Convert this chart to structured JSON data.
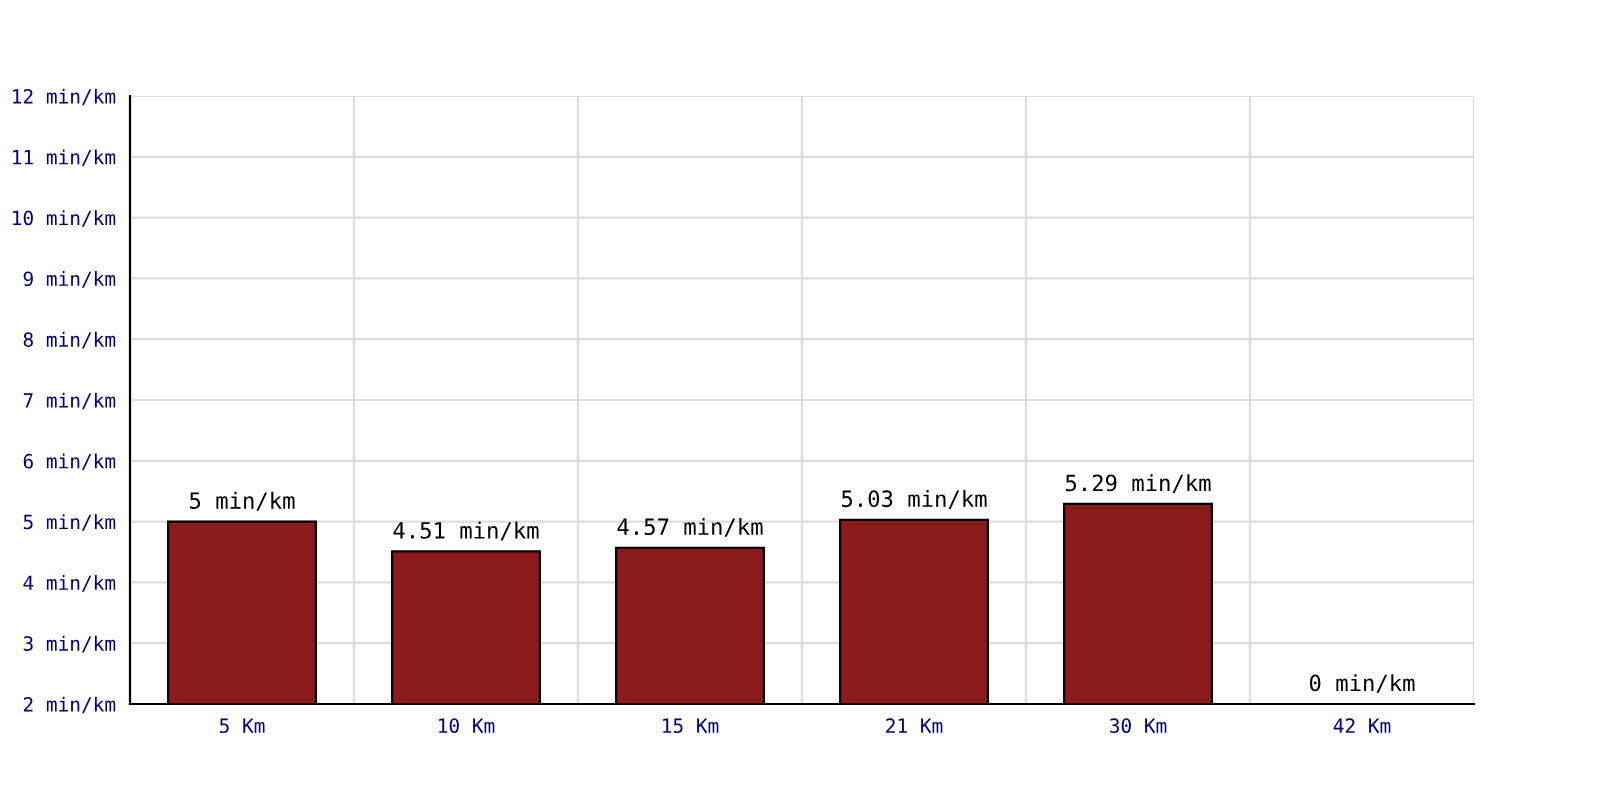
{
  "chart_data": {
    "type": "bar",
    "categories": [
      "5 Km",
      "10 Km",
      "15 Km",
      "21 Km",
      "30 Km",
      "42 Km"
    ],
    "values": [
      5,
      4.51,
      4.57,
      5.03,
      5.29,
      null
    ],
    "value_labels": [
      "5 min/km",
      "4.51 min/km",
      "4.57 min/km",
      "5.03 min/km",
      "5.29 min/km",
      "0 min/km"
    ],
    "color": "#8b1a1a",
    "ylim": [
      2,
      12
    ],
    "yticks": [
      {
        "value": 2,
        "label": "2 min/km"
      },
      {
        "value": 3,
        "label": "3 min/km"
      },
      {
        "value": 4,
        "label": "4 min/km"
      },
      {
        "value": 5,
        "label": "5 min/km"
      },
      {
        "value": 6,
        "label": "6 min/km"
      },
      {
        "value": 7,
        "label": "7 min/km"
      },
      {
        "value": 8,
        "label": "8 min/km"
      },
      {
        "value": 9,
        "label": "9 min/km"
      },
      {
        "value": 10,
        "label": "10 min/km"
      },
      {
        "value": 11,
        "label": "11 min/km"
      },
      {
        "value": 12,
        "label": "12 min/km"
      }
    ],
    "grid": true
  }
}
